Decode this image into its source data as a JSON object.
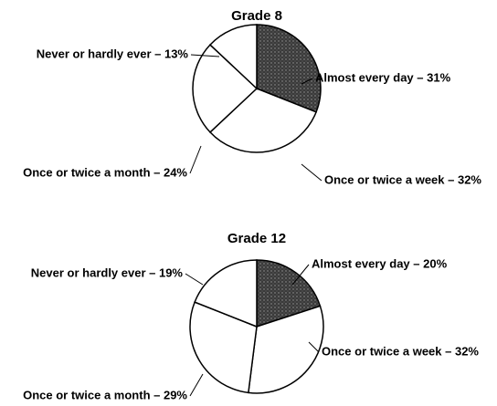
{
  "chart_data": [
    {
      "type": "pie",
      "title": "Grade 8",
      "categories": [
        "Almost every day – 31%",
        "Once or twice a week – 32%",
        "Once or twice a month – 24%",
        "Never or hardly ever – 13%"
      ],
      "values": [
        31,
        32,
        24,
        13
      ],
      "colors": [
        "#555555",
        "#ffffff",
        "#ffffff",
        "#ffffff"
      ]
    },
    {
      "type": "pie",
      "title": "Grade 12",
      "categories": [
        "Almost every day – 20%",
        "Once or twice a week – 32%",
        "Once or twice a month – 29%",
        "Never or hardly ever – 19%"
      ],
      "values": [
        20,
        32,
        29,
        19
      ],
      "colors": [
        "#555555",
        "#ffffff",
        "#ffffff",
        "#ffffff"
      ]
    }
  ]
}
